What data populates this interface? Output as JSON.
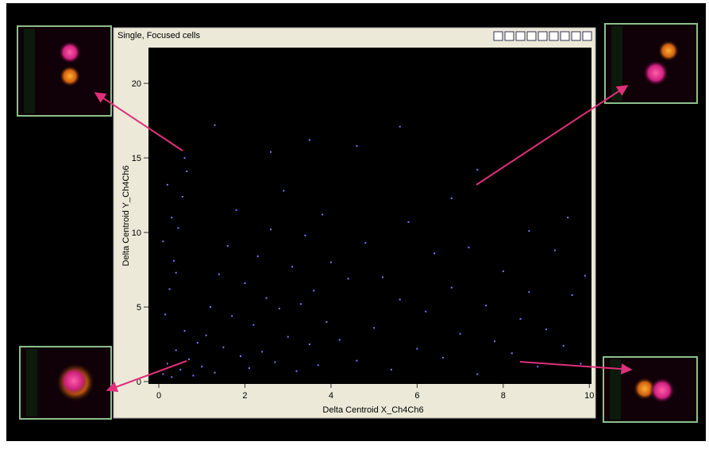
{
  "window": {
    "title": "Single, Focused cells"
  },
  "chart_data": {
    "type": "scatter",
    "xlabel": "Delta Centroid X_Ch4Ch6",
    "ylabel": "Delta Centroid Y_Ch4Ch6",
    "color": "#7b7bff",
    "xlim": [
      -0.24,
      10.05
    ],
    "ylim": [
      -0.16,
      22.4
    ],
    "xticks": [
      0,
      2,
      4,
      6,
      8,
      10
    ],
    "yticks": [
      0,
      5,
      10,
      15,
      20
    ],
    "x": [
      0.1,
      0.2,
      0.3,
      0.4,
      0.5,
      0.6,
      0.7,
      0.8,
      0.9,
      1.0,
      0.15,
      0.25,
      0.35,
      0.45,
      0.55,
      0.65,
      0.2,
      0.3,
      0.1,
      0.4,
      1.1,
      1.2,
      1.3,
      1.4,
      1.5,
      1.6,
      1.7,
      1.8,
      1.9,
      2.0,
      2.1,
      2.2,
      2.3,
      2.4,
      2.5,
      2.6,
      2.7,
      2.8,
      2.9,
      3.0,
      3.1,
      3.2,
      3.3,
      3.4,
      3.5,
      3.6,
      3.7,
      3.8,
      3.9,
      4.0,
      4.2,
      4.4,
      4.6,
      4.8,
      5.0,
      5.2,
      5.4,
      5.6,
      5.8,
      6.0,
      6.2,
      6.4,
      6.6,
      6.8,
      7.0,
      7.2,
      7.4,
      7.6,
      7.8,
      8.0,
      8.2,
      8.4,
      8.6,
      8.8,
      9.0,
      9.2,
      9.4,
      9.6,
      9.8,
      9.9,
      1.3,
      2.6,
      4.6,
      5.6,
      7.4,
      3.5,
      0.6,
      6.8,
      8.6,
      9.5
    ],
    "y": [
      0.5,
      1.2,
      0.3,
      2.1,
      0.8,
      3.4,
      1.5,
      0.4,
      2.6,
      1.0,
      4.5,
      6.2,
      8.1,
      10.3,
      12.4,
      14.1,
      13.2,
      11.0,
      9.4,
      7.3,
      3.1,
      5.0,
      0.6,
      7.2,
      2.3,
      9.1,
      4.4,
      11.5,
      1.7,
      6.6,
      0.9,
      3.8,
      8.4,
      2.0,
      5.6,
      10.2,
      1.3,
      4.9,
      12.8,
      3.0,
      7.7,
      0.7,
      5.2,
      9.8,
      2.5,
      6.1,
      1.1,
      11.2,
      4.0,
      8.0,
      2.8,
      6.9,
      1.4,
      9.3,
      3.6,
      7.0,
      0.8,
      5.5,
      10.7,
      2.2,
      4.7,
      8.6,
      1.6,
      6.3,
      3.2,
      9.0,
      0.5,
      5.1,
      2.7,
      7.4,
      1.9,
      4.2,
      6.0,
      1.0,
      3.5,
      8.8,
      2.4,
      5.8,
      1.2,
      7.1,
      17.2,
      15.4,
      15.8,
      17.1,
      14.2,
      16.2,
      15.0,
      12.3,
      10.1,
      11.0
    ]
  }
}
